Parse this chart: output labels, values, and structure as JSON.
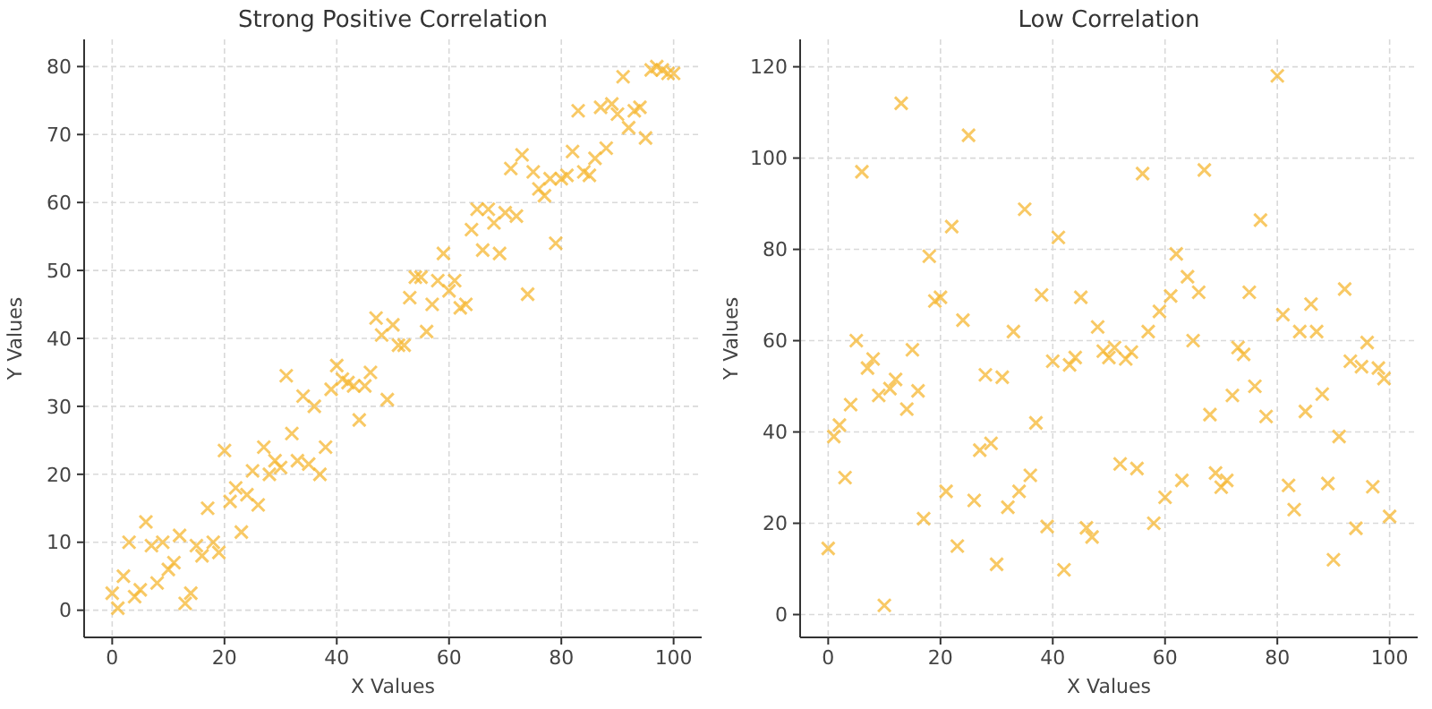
{
  "chart_data": [
    {
      "type": "scatter",
      "title": "Strong Positive Correlation",
      "xlabel": "X Values",
      "ylabel": "Y Values",
      "xlim": [
        -5,
        105
      ],
      "ylim": [
        -4,
        84
      ],
      "xticks": [
        0,
        20,
        40,
        60,
        80,
        100
      ],
      "yticks": [
        0,
        10,
        20,
        30,
        40,
        50,
        60,
        70,
        80
      ],
      "grid": true,
      "marker": "cross",
      "x": [
        0,
        1,
        2,
        3,
        4,
        5,
        6,
        7,
        8,
        9,
        10,
        11,
        12,
        13,
        14,
        15,
        16,
        17,
        18,
        19,
        20,
        21,
        22,
        23,
        24,
        25,
        26,
        27,
        28,
        29,
        30,
        31,
        32,
        33,
        34,
        35,
        36,
        37,
        38,
        39,
        40,
        41,
        42,
        43,
        44,
        45,
        46,
        47,
        48,
        49,
        50,
        51,
        52,
        53,
        54,
        55,
        56,
        57,
        58,
        59,
        60,
        61,
        62,
        63,
        64,
        65,
        66,
        67,
        68,
        69,
        70,
        71,
        72,
        73,
        74,
        75,
        76,
        77,
        78,
        79,
        80,
        81,
        82,
        83,
        84,
        85,
        86,
        87,
        88,
        89,
        90,
        91,
        92,
        93,
        94,
        95,
        96,
        97,
        98,
        99,
        100
      ],
      "series": [
        {
          "color": "#f5b731",
          "values": [
            2.5,
            0.3,
            5,
            10,
            2,
            3,
            13,
            9.5,
            4,
            10,
            6,
            7,
            11,
            1,
            2.5,
            9.5,
            8,
            15,
            10,
            8.5,
            23.5,
            16,
            18,
            11.5,
            17,
            20.5,
            15.5,
            24,
            20,
            22,
            21,
            34.5,
            26,
            22,
            31.5,
            21.5,
            30,
            20,
            24,
            32.5,
            36,
            34,
            33.5,
            33,
            28,
            33,
            35,
            43,
            40.5,
            31,
            42,
            39,
            39,
            46,
            49,
            49,
            41,
            45,
            48.5,
            52.5,
            47,
            48.5,
            44.5,
            45,
            56,
            59,
            53,
            59,
            57,
            52.5,
            58.5,
            65,
            58,
            67,
            46.5,
            64.5,
            62,
            61,
            63.5,
            54,
            63.5,
            64,
            67.5,
            73.5,
            64.5,
            64,
            66.5,
            74,
            68,
            74.5,
            73,
            78.5,
            71,
            73.5,
            74,
            69.5,
            79.5,
            80,
            79.5,
            79,
            79
          ]
        }
      ]
    },
    {
      "type": "scatter",
      "title": "Low Correlation",
      "xlabel": "X Values",
      "ylabel": "Y Values",
      "xlim": [
        -5,
        105
      ],
      "ylim": [
        -5,
        126
      ],
      "xticks": [
        0,
        20,
        40,
        60,
        80,
        100
      ],
      "yticks": [
        0,
        20,
        40,
        60,
        80,
        100,
        120
      ],
      "grid": true,
      "marker": "cross",
      "x": [
        0,
        1,
        2,
        3,
        4,
        5,
        6,
        7,
        8,
        9,
        10,
        11,
        12,
        13,
        14,
        15,
        16,
        17,
        18,
        19,
        20,
        21,
        22,
        23,
        24,
        25,
        26,
        27,
        28,
        29,
        30,
        31,
        32,
        33,
        34,
        35,
        36,
        37,
        38,
        39,
        40,
        41,
        42,
        43,
        44,
        45,
        46,
        47,
        48,
        49,
        50,
        51,
        52,
        53,
        54,
        55,
        56,
        57,
        58,
        59,
        60,
        61,
        62,
        63,
        64,
        65,
        66,
        67,
        68,
        69,
        70,
        71,
        72,
        73,
        74,
        75,
        76,
        77,
        78,
        80,
        81,
        82,
        83,
        84,
        85,
        86,
        87,
        88,
        89,
        90,
        91,
        92,
        93,
        94,
        95,
        96,
        97,
        98,
        99,
        100
      ],
      "series": [
        {
          "color": "#f5b731",
          "values": [
            14.5,
            39,
            41.5,
            30,
            46,
            60,
            97,
            54,
            56,
            48,
            2,
            49.5,
            51.5,
            112,
            45,
            58,
            49,
            21,
            78.5,
            68.7,
            69.5,
            27,
            85,
            15,
            64.5,
            105,
            25,
            36,
            52.5,
            37.5,
            11,
            52,
            23.5,
            62,
            27,
            88.8,
            30.5,
            42,
            70,
            19.3,
            55.5,
            82.6,
            9.8,
            54.7,
            56.3,
            69.5,
            19,
            17,
            63,
            57.7,
            56.3,
            58.5,
            33,
            56,
            57.5,
            32,
            96.6,
            62,
            20,
            66.4,
            25.7,
            69.8,
            79,
            29.4,
            74,
            60,
            70.6,
            97.4,
            43.8,
            31,
            27.9,
            29.4,
            48,
            58.5,
            57,
            70.6,
            50,
            86.4,
            43.4,
            118,
            65.7,
            28.3,
            23,
            62,
            44.5,
            68,
            62,
            48.3,
            28.7,
            12,
            39,
            71.3,
            55.5,
            18.9,
            54.3,
            59.6,
            28,
            54,
            51.7,
            21.5
          ]
        }
      ]
    }
  ]
}
